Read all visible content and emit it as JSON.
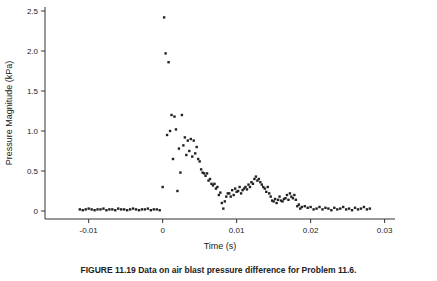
{
  "chart_data": {
    "type": "scatter",
    "x_label": "Time (s)",
    "y_label": "Pressure Magnitude (kPa)",
    "caption": "FIGURE 11.19 Data on air blast pressure difference for Problem 11.6.",
    "color": "#222222",
    "marker": "square",
    "grid": false,
    "xlim": [
      -0.0159,
      0.0314
    ],
    "xticks": [
      -0.01,
      0,
      0.01,
      0.02,
      0.03
    ],
    "ylim": [
      -0.1,
      2.55
    ],
    "yticks": [
      0,
      0.5,
      {
        "value": 1,
        "label": "1.0"
      },
      1.5,
      {
        "value": 2,
        "label": "2.0"
      },
      2.5
    ],
    "x": [
      -0.0112,
      -0.0108,
      -0.0104,
      -0.01,
      -0.0096,
      -0.0092,
      -0.0088,
      -0.0084,
      -0.008,
      -0.0076,
      -0.0072,
      -0.0068,
      -0.0064,
      -0.006,
      -0.0056,
      -0.0052,
      -0.0048,
      -0.0044,
      -0.004,
      -0.0036,
      -0.0032,
      -0.0028,
      -0.0024,
      -0.002,
      -0.0016,
      -0.0012,
      -0.0008,
      -0.0004,
      0,
      0.0002,
      0.0004,
      0.0006,
      0.0008,
      0.001,
      0.0012,
      0.0014,
      0.0016,
      0.0018,
      0.002,
      0.0022,
      0.0024,
      0.0026,
      0.0028,
      0.003,
      0.0032,
      0.0034,
      0.0036,
      0.0038,
      0.004,
      0.0042,
      0.0044,
      0.0046,
      0.0048,
      0.005,
      0.0052,
      0.0054,
      0.0056,
      0.0058,
      0.006,
      0.0062,
      0.0064,
      0.0066,
      0.0068,
      0.007,
      0.0072,
      0.0074,
      0.0076,
      0.0078,
      0.008,
      0.0082,
      0.0084,
      0.0086,
      0.0088,
      0.009,
      0.0092,
      0.0094,
      0.0096,
      0.0098,
      0.01,
      0.0102,
      0.0104,
      0.0106,
      0.0108,
      0.011,
      0.0112,
      0.0114,
      0.0116,
      0.0118,
      0.012,
      0.0122,
      0.0124,
      0.0126,
      0.0128,
      0.013,
      0.0132,
      0.0134,
      0.0136,
      0.0138,
      0.014,
      0.0142,
      0.0144,
      0.0146,
      0.0148,
      0.015,
      0.0152,
      0.0154,
      0.0156,
      0.0158,
      0.016,
      0.0162,
      0.0164,
      0.0166,
      0.0168,
      0.017,
      0.0172,
      0.0174,
      0.0176,
      0.0178,
      0.018,
      0.0182,
      0.0184,
      0.0186,
      0.0188,
      0.0192,
      0.0196,
      0.02,
      0.0204,
      0.0208,
      0.0212,
      0.0216,
      0.022,
      0.0224,
      0.0228,
      0.0232,
      0.0236,
      0.024,
      0.0244,
      0.0248,
      0.0252,
      0.0256,
      0.026,
      0.0264,
      0.0268,
      0.0272,
      0.0276,
      0.028
    ],
    "values": [
      0.02,
      0.01,
      0.02,
      0.03,
      0.02,
      0.01,
      0.02,
      0.02,
      0.03,
      0.01,
      0.02,
      0.02,
      0.01,
      0.03,
      0.02,
      0.02,
      0.01,
      0.02,
      0.03,
      0.02,
      0.01,
      0.02,
      0.02,
      0.03,
      0.01,
      0.02,
      0.02,
      0.01,
      0.3,
      2.42,
      1.97,
      0.95,
      1.86,
      1.0,
      1.2,
      0.65,
      1.18,
      1.02,
      0.25,
      0.78,
      0.48,
      1.2,
      0.82,
      0.92,
      0.7,
      0.88,
      0.75,
      0.9,
      0.68,
      0.88,
      0.72,
      0.8,
      0.65,
      0.62,
      0.52,
      0.48,
      0.47,
      0.44,
      0.47,
      0.38,
      0.4,
      0.34,
      0.32,
      0.34,
      0.28,
      0.3,
      0.2,
      0.23,
      0.1,
      0.03,
      0.12,
      0.18,
      0.22,
      0.22,
      0.18,
      0.26,
      0.2,
      0.28,
      0.24,
      0.25,
      0.3,
      0.22,
      0.26,
      0.28,
      0.3,
      0.27,
      0.33,
      0.3,
      0.36,
      0.34,
      0.4,
      0.43,
      0.38,
      0.4,
      0.36,
      0.33,
      0.3,
      0.28,
      0.24,
      0.3,
      0.22,
      0.18,
      0.13,
      0.12,
      0.15,
      0.1,
      0.14,
      0.18,
      0.13,
      0.12,
      0.15,
      0.16,
      0.2,
      0.14,
      0.22,
      0.18,
      0.16,
      0.2,
      0.14,
      0.06,
      0.08,
      0.03,
      0.05,
      0.06,
      0.04,
      0.05,
      0.02,
      0.03,
      0.05,
      0.02,
      0.04,
      0.03,
      0.01,
      0.04,
      0.02,
      0.03,
      0.05,
      0.02,
      0.03,
      0.01,
      0.04,
      0.02,
      0.03,
      0.05,
      0.02,
      0.03
    ]
  }
}
